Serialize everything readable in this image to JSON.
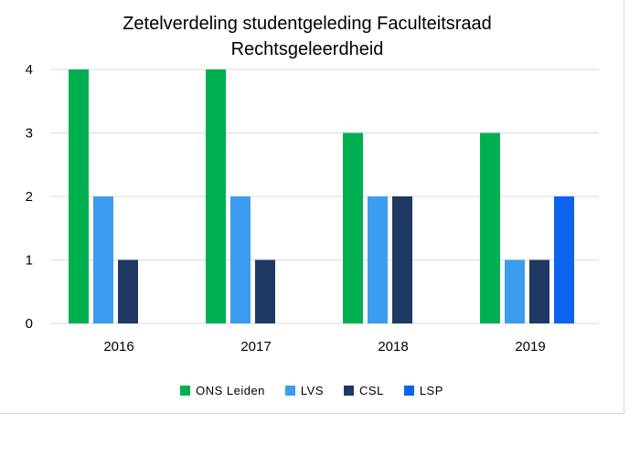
{
  "chart_data": {
    "type": "bar",
    "title": [
      "Zetelverdeling studentgeleding Faculteitsraad",
      "Rechtsgeleerdheid"
    ],
    "categories": [
      "2016",
      "2017",
      "2018",
      "2019"
    ],
    "series": [
      {
        "name": "ONS Leiden",
        "color": "#00b050",
        "values": [
          4,
          4,
          3,
          3
        ]
      },
      {
        "name": "LVS",
        "color": "#3c9cf0",
        "values": [
          2,
          2,
          2,
          1
        ]
      },
      {
        "name": "CSL",
        "color": "#1f3864",
        "values": [
          1,
          1,
          2,
          1
        ]
      },
      {
        "name": "LSP",
        "color": "#0b63f0",
        "values": [
          null,
          null,
          null,
          2
        ]
      }
    ],
    "ylim": [
      0,
      4
    ],
    "yticks": [
      "0",
      "1",
      "2",
      "3",
      "4"
    ],
    "grid": true,
    "legend": "bottom"
  }
}
